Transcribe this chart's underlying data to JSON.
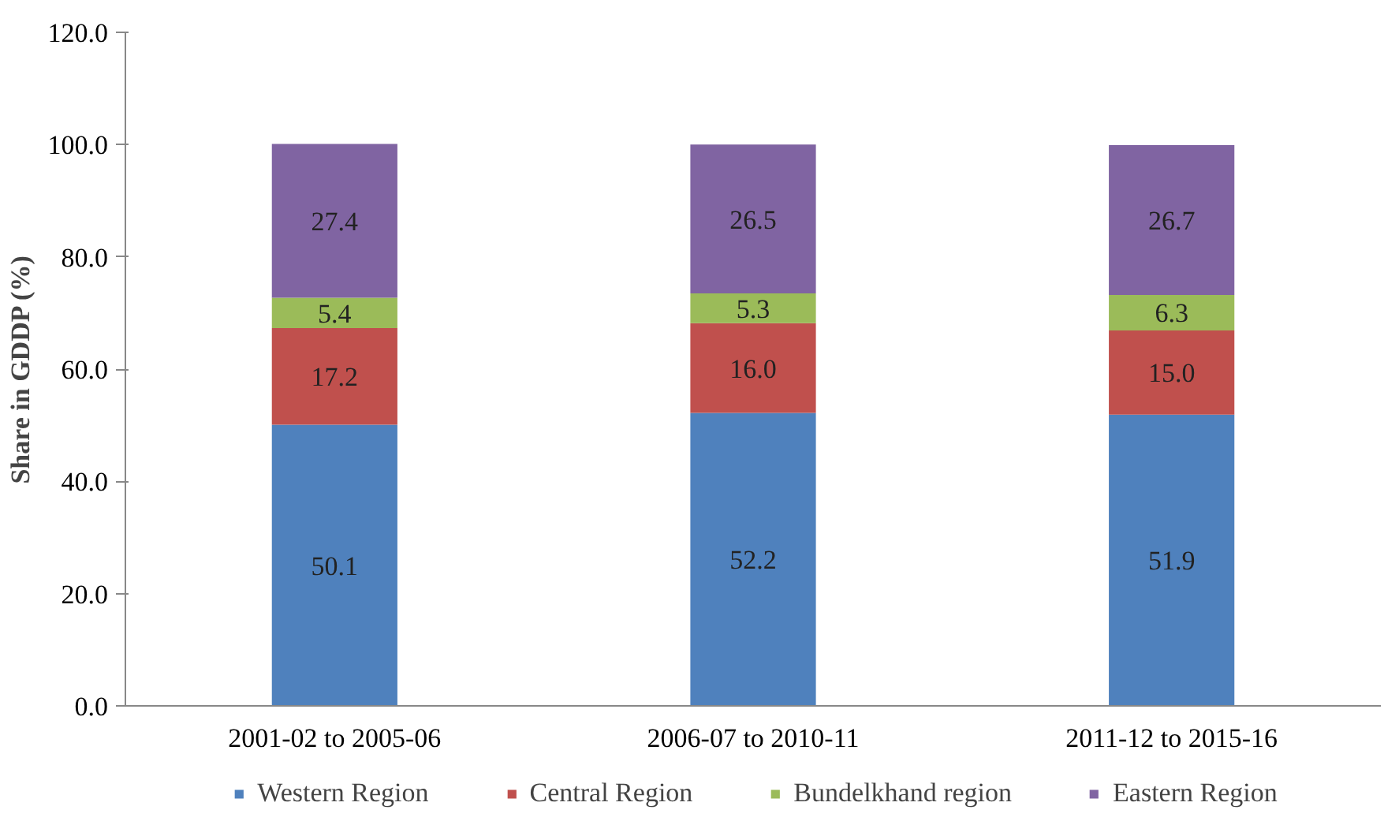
{
  "chart_data": {
    "type": "bar",
    "stacked": true,
    "ylabel": "Share in GDDP (%)",
    "categories": [
      "2001-02 to 2005-06",
      "2006-07 to 2010-11",
      "2011-12 to 2015-16"
    ],
    "series": [
      {
        "name": "Western Region",
        "color": "#4f81bd",
        "values": [
          50.1,
          52.2,
          51.9
        ],
        "value_labels": [
          "50.1",
          "52.2",
          "51.9"
        ]
      },
      {
        "name": "Central Region",
        "color": "#c0504d",
        "values": [
          17.2,
          16.0,
          15.0
        ],
        "value_labels": [
          "17.2",
          "16.0",
          "15.0"
        ]
      },
      {
        "name": "Bundelkhand region",
        "color": "#9bbb59",
        "values": [
          5.4,
          5.3,
          6.3
        ],
        "value_labels": [
          "5.4",
          "5.3",
          "6.3"
        ]
      },
      {
        "name": "Eastern Region",
        "color": "#8064a2",
        "values": [
          27.4,
          26.5,
          26.7
        ],
        "value_labels": [
          "27.4",
          "26.5",
          "26.7"
        ]
      }
    ],
    "ylim": [
      0,
      120
    ],
    "yticks": [
      {
        "value": 0,
        "label": "0.0"
      },
      {
        "value": 20,
        "label": "20.0"
      },
      {
        "value": 40,
        "label": "40.0"
      },
      {
        "value": 60,
        "label": "60.0"
      },
      {
        "value": 80,
        "label": "80.0"
      },
      {
        "value": 100,
        "label": "100.0"
      },
      {
        "value": 120,
        "label": "120.0"
      }
    ],
    "grid": false,
    "legend": "bottom"
  }
}
